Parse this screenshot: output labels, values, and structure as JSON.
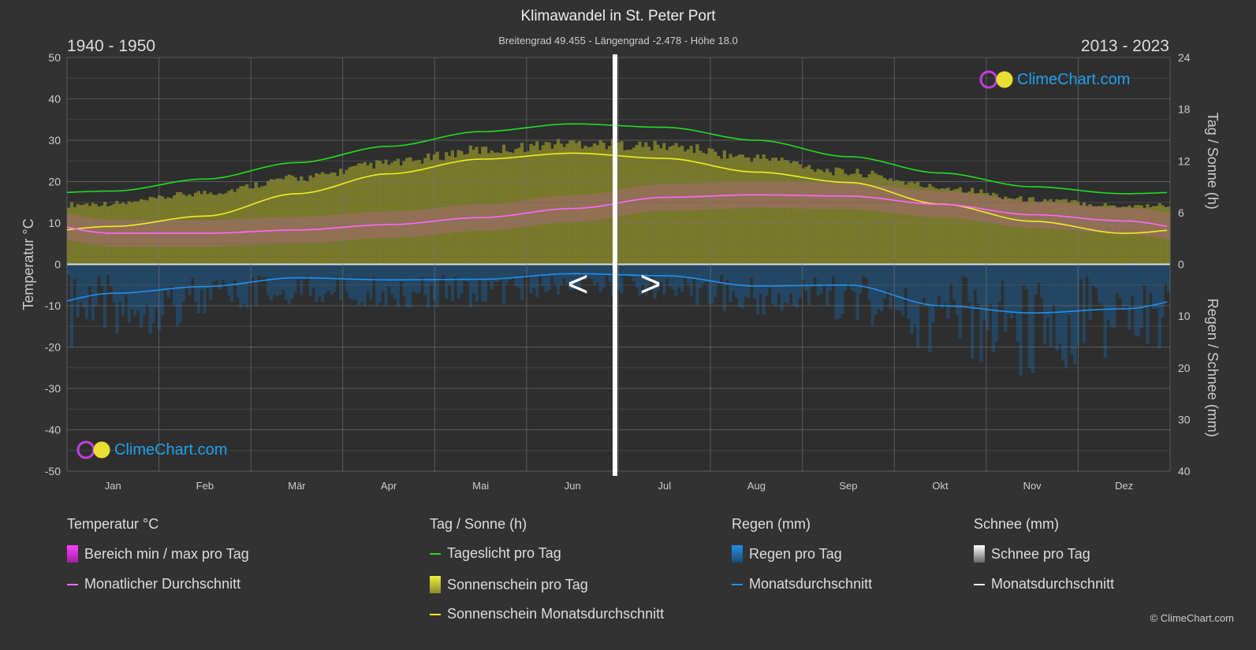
{
  "header": {
    "title": "Klimawandel in St. Peter Port",
    "subtitle": "Breitengrad 49.455 - Längengrad -2.478 - Höhe 18.0",
    "period_left": "1940 - 1950",
    "period_right": "2013 - 2023"
  },
  "nav": {
    "prev": "<",
    "next": ">"
  },
  "logo": {
    "text": "ClimeChart.com"
  },
  "copyright": "© ClimeChart.com",
  "legend": {
    "temp": {
      "title": "Temperatur °C",
      "items": [
        "Bereich min / max pro Tag",
        "Monatlicher Durchschnitt"
      ]
    },
    "sun": {
      "title": "Tag / Sonne (h)",
      "items": [
        "Tageslicht pro Tag",
        "Sonnenschein pro Tag",
        "Sonnenschein Monatsdurchschnitt"
      ]
    },
    "rain": {
      "title": "Regen (mm)",
      "items": [
        "Regen pro Tag",
        "Monatsdurchschnitt"
      ]
    },
    "snow": {
      "title": "Schnee (mm)",
      "items": [
        "Schnee pro Tag",
        "Monatsdurchschnitt"
      ]
    }
  },
  "chart_data": {
    "type": "line",
    "categories": [
      "Jan",
      "Feb",
      "Mär",
      "Apr",
      "Mai",
      "Jun",
      "Jul",
      "Aug",
      "Sep",
      "Okt",
      "Nov",
      "Dez"
    ],
    "ylabel_left": "Temperatur °C",
    "ylabel_right_top": "Tag / Sonne (h)",
    "ylabel_right_bottom": "Regen / Schnee (mm)",
    "ylim_left": [
      -50,
      50
    ],
    "yticks_left": [
      50,
      40,
      30,
      20,
      10,
      0,
      -10,
      -20,
      -30,
      -40,
      -50
    ],
    "yticks_right_top": [
      24,
      18,
      12,
      6,
      0
    ],
    "yticks_right_bottom": [
      0,
      10,
      20,
      30,
      40
    ],
    "grid": true,
    "series": [
      {
        "name": "Monatlicher Durchschnitt",
        "unit": "°C",
        "color": "#ff66ff",
        "values": [
          7.5,
          7.5,
          8.3,
          9.6,
          11.3,
          13.5,
          16.2,
          16.8,
          16.5,
          14.5,
          12.0,
          10.5
        ]
      },
      {
        "name": "Tageslicht pro Tag",
        "unit": "h",
        "color": "#22dd22",
        "values": [
          8.5,
          9.9,
          11.8,
          13.7,
          15.4,
          16.3,
          15.9,
          14.4,
          12.5,
          10.6,
          9.0,
          8.2
        ]
      },
      {
        "name": "Sonnenschein Monatsdurchschnitt",
        "unit": "h",
        "color": "#eeee22",
        "values": [
          4.4,
          5.6,
          8.2,
          10.5,
          12.2,
          12.9,
          12.3,
          10.7,
          9.5,
          7.0,
          5.0,
          3.6
        ]
      },
      {
        "name": "Regen Monatsdurchschnitt",
        "unit": "mm",
        "color": "#2090ee",
        "values": [
          5.6,
          4.3,
          2.6,
          3.0,
          2.9,
          1.8,
          2.2,
          4.2,
          4.0,
          8.0,
          9.4,
          8.6
        ]
      }
    ],
    "colors": {
      "sun_area": "#8a8a2c",
      "temp_band": "#c060a0",
      "rain_bars": "#1e5a8a",
      "background": "#323232"
    }
  }
}
